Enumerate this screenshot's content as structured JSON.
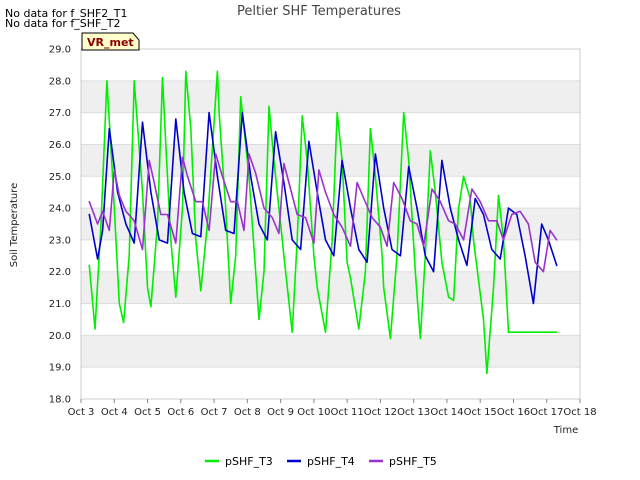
{
  "notices": [
    "No data for f_SHF2_T1",
    "No data for f_SHF_T2"
  ],
  "badge": "VR_met",
  "colors": {
    "band": "#efefef",
    "grid": "#dddddd",
    "badge_bg": "#ffffcc",
    "badge_border": "#000000"
  },
  "chart_data": {
    "type": "line",
    "title": "Peltier SHF Temperatures",
    "xlabel": "Time",
    "ylabel": "Soil Temperature",
    "xlim": [
      3,
      18
    ],
    "ylim": [
      18.0,
      29.0
    ],
    "x_ticks": [
      3,
      4,
      5,
      6,
      7,
      8,
      9,
      10,
      11,
      12,
      13,
      14,
      15,
      16,
      17,
      18
    ],
    "x_tick_labels": [
      "Oct 3",
      "Oct 4",
      "Oct 5",
      "Oct 6",
      "Oct 7",
      "Oct 8",
      "Oct 9",
      "Oct 10",
      "Oct 11",
      "Oct 12",
      "Oct 13",
      "Oct 14",
      "Oct 15",
      "Oct 16",
      "Oct 17",
      "Oct 18"
    ],
    "y_ticks": [
      18.0,
      19.0,
      20.0,
      21.0,
      22.0,
      23.0,
      24.0,
      25.0,
      26.0,
      27.0,
      28.0,
      29.0
    ],
    "y_tick_labels": [
      "18.0",
      "19.0",
      "20.0",
      "21.0",
      "22.0",
      "23.0",
      "24.0",
      "25.0",
      "26.0",
      "27.0",
      "28.0",
      "29.0"
    ],
    "grid": true,
    "legend_position": "bottom",
    "series": [
      {
        "name": "pSHF_T3",
        "color": "#00ee00",
        "x": [
          3.25,
          3.42,
          3.6,
          3.78,
          3.95,
          4.15,
          4.28,
          4.45,
          4.6,
          4.85,
          5.0,
          5.1,
          5.3,
          5.45,
          5.55,
          5.7,
          5.85,
          6.05,
          6.15,
          6.3,
          6.45,
          6.6,
          6.8,
          7.1,
          7.15,
          7.35,
          7.5,
          7.65,
          7.8,
          8.05,
          8.15,
          8.35,
          8.5,
          8.65,
          8.8,
          9.05,
          9.1,
          9.35,
          9.5,
          9.65,
          9.8,
          10.0,
          10.1,
          10.35,
          10.55,
          10.7,
          10.85,
          11.0,
          11.1,
          11.35,
          11.55,
          11.7,
          11.85,
          12.05,
          12.1,
          12.3,
          12.5,
          12.7,
          12.85,
          13.05,
          13.2,
          13.35,
          13.5,
          13.65,
          13.85,
          14.05,
          14.2,
          14.35,
          14.5,
          14.7,
          14.8,
          15.1,
          15.2,
          15.4,
          15.55,
          15.7,
          15.85,
          16.05,
          16.25,
          16.4,
          16.6,
          16.75,
          16.85,
          17.05,
          17.2,
          17.3
        ],
        "y": [
          22.2,
          20.2,
          23.5,
          28.0,
          25.0,
          21.0,
          20.4,
          22.5,
          28.0,
          24.5,
          21.5,
          20.9,
          23.5,
          28.1,
          26.0,
          23.0,
          21.2,
          24.0,
          28.3,
          26.5,
          23.0,
          21.4,
          23.5,
          28.3,
          27.0,
          24.0,
          21.0,
          22.5,
          27.5,
          25.0,
          23.5,
          20.5,
          22.0,
          27.2,
          25.5,
          23.0,
          22.5,
          20.1,
          23.0,
          26.9,
          25.5,
          22.5,
          21.5,
          20.1,
          23.0,
          27.0,
          25.5,
          22.3,
          21.8,
          20.2,
          22.0,
          26.5,
          25.0,
          22.5,
          21.5,
          19.9,
          22.5,
          27.0,
          25.5,
          22.0,
          19.9,
          22.5,
          25.8,
          24.5,
          22.3,
          21.2,
          21.1,
          24.0,
          25.0,
          24.3,
          23.0,
          20.5,
          18.8,
          21.5,
          24.4,
          23.0,
          20.1,
          20.1,
          20.1,
          20.1,
          20.1,
          20.1,
          20.1,
          20.1,
          20.1,
          20.1
        ]
      },
      {
        "name": "pSHF_T4",
        "color": "#0000cc",
        "x": [
          3.25,
          3.5,
          3.65,
          3.85,
          4.1,
          4.35,
          4.6,
          4.85,
          5.1,
          5.35,
          5.6,
          5.85,
          6.1,
          6.35,
          6.6,
          6.85,
          7.1,
          7.35,
          7.6,
          7.85,
          8.1,
          8.35,
          8.6,
          8.85,
          9.1,
          9.35,
          9.6,
          9.85,
          10.1,
          10.35,
          10.6,
          10.85,
          11.1,
          11.35,
          11.6,
          11.85,
          12.1,
          12.35,
          12.6,
          12.85,
          13.1,
          13.35,
          13.6,
          13.85,
          14.1,
          14.35,
          14.6,
          14.85,
          15.1,
          15.35,
          15.6,
          15.85,
          16.1,
          16.35,
          16.6,
          16.85,
          17.05,
          17.3
        ],
        "y": [
          23.8,
          22.4,
          23.3,
          26.5,
          24.5,
          23.5,
          22.9,
          26.7,
          24.5,
          23.0,
          22.9,
          26.8,
          24.5,
          23.2,
          23.1,
          27.0,
          25.0,
          23.3,
          23.2,
          27.0,
          25.0,
          23.5,
          23.0,
          26.4,
          24.8,
          23.0,
          22.7,
          26.1,
          24.5,
          23.0,
          22.5,
          25.5,
          24.0,
          22.7,
          22.3,
          25.7,
          24.0,
          22.7,
          22.5,
          25.3,
          24.0,
          22.5,
          22.0,
          25.5,
          24.0,
          23.0,
          22.2,
          24.3,
          23.8,
          22.7,
          22.4,
          24.0,
          23.8,
          22.5,
          21.0,
          23.5,
          23.0,
          22.2
        ]
      },
      {
        "name": "pSHF_T5",
        "color": "#9933cc",
        "x": [
          3.25,
          3.5,
          3.65,
          3.85,
          4.0,
          4.15,
          4.35,
          4.6,
          4.85,
          5.05,
          5.2,
          5.4,
          5.6,
          5.85,
          6.05,
          6.2,
          6.45,
          6.65,
          6.85,
          7.05,
          7.25,
          7.5,
          7.7,
          7.9,
          8.05,
          8.25,
          8.5,
          8.75,
          8.95,
          9.1,
          9.3,
          9.5,
          9.75,
          10.0,
          10.15,
          10.35,
          10.6,
          10.85,
          11.1,
          11.3,
          11.5,
          11.75,
          12.0,
          12.2,
          12.4,
          12.65,
          12.9,
          13.1,
          13.3,
          13.55,
          13.8,
          14.05,
          14.25,
          14.5,
          14.75,
          15.0,
          15.25,
          15.5,
          15.7,
          15.95,
          16.2,
          16.45,
          16.65,
          16.9,
          17.1,
          17.3
        ],
        "y": [
          24.2,
          23.5,
          23.9,
          23.3,
          25.2,
          24.4,
          23.9,
          23.6,
          22.7,
          25.5,
          24.8,
          23.8,
          23.8,
          22.9,
          25.6,
          25.0,
          24.2,
          24.2,
          23.3,
          25.7,
          25.0,
          24.2,
          24.2,
          23.3,
          25.7,
          25.1,
          24.0,
          23.7,
          23.2,
          25.4,
          24.6,
          23.8,
          23.7,
          22.9,
          25.2,
          24.5,
          23.8,
          23.4,
          22.8,
          24.8,
          24.3,
          23.7,
          23.4,
          22.8,
          24.8,
          24.3,
          23.6,
          23.5,
          22.8,
          24.6,
          24.2,
          23.6,
          23.5,
          23.0,
          24.6,
          24.2,
          23.6,
          23.6,
          23.0,
          23.8,
          23.9,
          23.5,
          22.3,
          22.0,
          23.3,
          23.0
        ]
      }
    ]
  }
}
